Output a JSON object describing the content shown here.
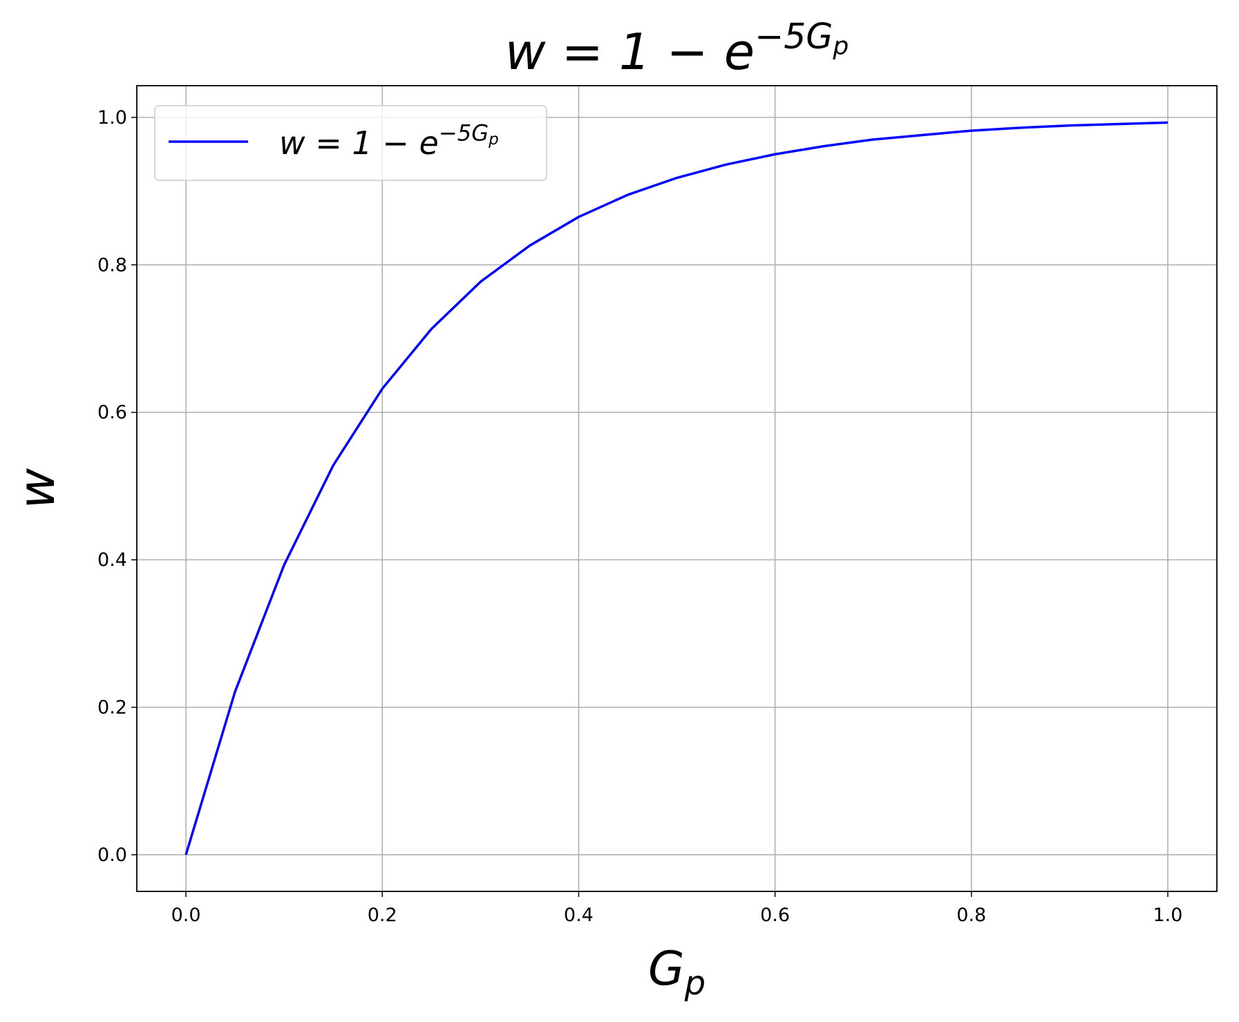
{
  "chart_data": {
    "type": "line",
    "title": [
      "w = 1 − e",
      "−5G",
      "p"
    ],
    "x_label": [
      "G",
      "p"
    ],
    "y_label": "w",
    "x": [
      0,
      0.05,
      0.1,
      0.15,
      0.2,
      0.25,
      0.3,
      0.35,
      0.4,
      0.45,
      0.5,
      0.55,
      0.6,
      0.65,
      0.7,
      0.75,
      0.8,
      0.85,
      0.9,
      0.95,
      1.0
    ],
    "series": [
      {
        "name": [
          "w = 1 − e",
          "−5G",
          "p"
        ],
        "color": "#0000ff",
        "values": [
          0,
          0.221,
          0.393,
          0.528,
          0.632,
          0.713,
          0.777,
          0.826,
          0.865,
          0.895,
          0.918,
          0.936,
          0.95,
          0.961,
          0.97,
          0.976,
          0.982,
          0.986,
          0.989,
          0.991,
          0.993
        ]
      }
    ],
    "xlim": [
      -0.05,
      1.05
    ],
    "ylim": [
      -0.0497,
      1.043
    ],
    "xticks": [
      {
        "value": 0,
        "label": "0.0"
      },
      {
        "value": 0.2,
        "label": "0.2"
      },
      {
        "value": 0.4,
        "label": "0.4"
      },
      {
        "value": 0.6,
        "label": "0.6"
      },
      {
        "value": 0.8,
        "label": "0.8"
      },
      {
        "value": 1.0,
        "label": "1.0"
      }
    ],
    "yticks": [
      {
        "value": 0,
        "label": "0.0"
      },
      {
        "value": 0.2,
        "label": "0.2"
      },
      {
        "value": 0.4,
        "label": "0.4"
      },
      {
        "value": 0.6,
        "label": "0.6"
      },
      {
        "value": 0.8,
        "label": "0.8"
      },
      {
        "value": 1.0,
        "label": "1.0"
      }
    ],
    "grid": true,
    "legend": "upper left"
  }
}
